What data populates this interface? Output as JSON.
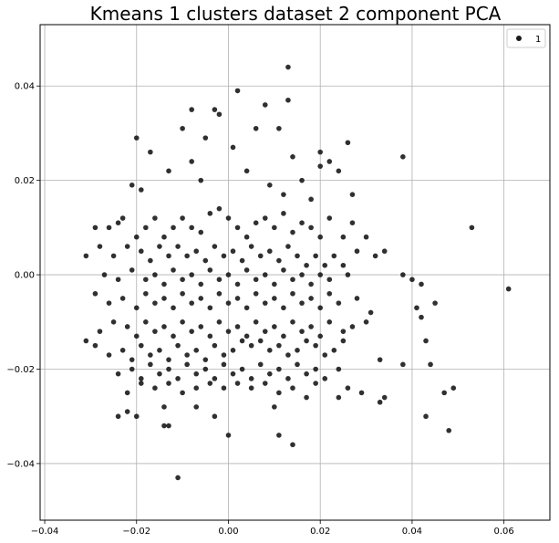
{
  "chart_data": {
    "type": "scatter",
    "title": "Kmeans 1 clusters dataset 2 component PCA",
    "xlabel": "",
    "ylabel": "",
    "xlim": [
      -0.041,
      0.07
    ],
    "ylim": [
      -0.052,
      0.053
    ],
    "xticks": [
      -0.04,
      -0.02,
      0.0,
      0.02,
      0.04,
      0.06
    ],
    "xtick_labels": [
      "−0.04",
      "−0.02",
      "0.00",
      "0.02",
      "0.04",
      "0.06"
    ],
    "yticks": [
      -0.04,
      -0.02,
      0.0,
      0.02,
      0.04
    ],
    "ytick_labels": [
      "−0.04",
      "−0.02",
      "0.00",
      "0.02",
      "0.04"
    ],
    "grid": true,
    "legend": {
      "position": "top-right",
      "entries": [
        "1"
      ]
    },
    "marker_color": "#1a1a1a",
    "series": [
      {
        "name": "1",
        "points": [
          [
            0.013,
            0.044
          ],
          [
            0.002,
            0.039
          ],
          [
            0.013,
            0.037
          ],
          [
            0.008,
            0.036
          ],
          [
            -0.008,
            0.035
          ],
          [
            -0.003,
            0.035
          ],
          [
            0.011,
            0.031
          ],
          [
            0.006,
            0.031
          ],
          [
            -0.01,
            0.031
          ],
          [
            -0.002,
            0.034
          ],
          [
            0.001,
            0.027
          ],
          [
            -0.005,
            0.029
          ],
          [
            0.014,
            0.025
          ],
          [
            0.02,
            0.026
          ],
          [
            0.022,
            0.024
          ],
          [
            0.026,
            0.028
          ],
          [
            0.038,
            0.025
          ],
          [
            -0.02,
            0.029
          ],
          [
            -0.017,
            0.026
          ],
          [
            0.016,
            0.02
          ],
          [
            0.02,
            0.023
          ],
          [
            0.024,
            0.022
          ],
          [
            0.027,
            0.017
          ],
          [
            0.018,
            0.016
          ],
          [
            -0.021,
            0.019
          ],
          [
            -0.019,
            0.018
          ],
          [
            -0.013,
            0.022
          ],
          [
            -0.008,
            0.024
          ],
          [
            -0.006,
            0.02
          ],
          [
            0.004,
            0.022
          ],
          [
            0.009,
            0.019
          ],
          [
            0.012,
            0.017
          ],
          [
            -0.026,
            0.01
          ],
          [
            -0.029,
            0.01
          ],
          [
            -0.024,
            0.011
          ],
          [
            -0.023,
            0.012
          ],
          [
            -0.02,
            0.008
          ],
          [
            -0.018,
            0.01
          ],
          [
            -0.016,
            0.012
          ],
          [
            -0.014,
            0.008
          ],
          [
            -0.012,
            0.01
          ],
          [
            -0.01,
            0.012
          ],
          [
            -0.008,
            0.01
          ],
          [
            -0.006,
            0.009
          ],
          [
            -0.004,
            0.013
          ],
          [
            -0.002,
            0.014
          ],
          [
            0.0,
            0.012
          ],
          [
            0.002,
            0.01
          ],
          [
            0.004,
            0.008
          ],
          [
            0.006,
            0.011
          ],
          [
            0.008,
            0.012
          ],
          [
            0.01,
            0.01
          ],
          [
            0.012,
            0.013
          ],
          [
            0.014,
            0.009
          ],
          [
            0.016,
            0.011
          ],
          [
            0.018,
            0.01
          ],
          [
            0.02,
            0.008
          ],
          [
            0.022,
            0.012
          ],
          [
            0.025,
            0.008
          ],
          [
            0.027,
            0.011
          ],
          [
            0.03,
            0.008
          ],
          [
            0.032,
            0.004
          ],
          [
            0.034,
            0.005
          ],
          [
            0.028,
            0.005
          ],
          [
            -0.031,
            0.004
          ],
          [
            -0.028,
            0.006
          ],
          [
            -0.025,
            0.004
          ],
          [
            -0.022,
            0.006
          ],
          [
            -0.019,
            0.005
          ],
          [
            -0.017,
            0.003
          ],
          [
            -0.015,
            0.006
          ],
          [
            -0.013,
            0.004
          ],
          [
            -0.011,
            0.006
          ],
          [
            -0.009,
            0.004
          ],
          [
            -0.007,
            0.005
          ],
          [
            -0.005,
            0.003
          ],
          [
            -0.003,
            0.006
          ],
          [
            -0.001,
            0.004
          ],
          [
            0.001,
            0.005
          ],
          [
            0.003,
            0.003
          ],
          [
            0.005,
            0.006
          ],
          [
            0.007,
            0.004
          ],
          [
            0.009,
            0.005
          ],
          [
            0.011,
            0.003
          ],
          [
            0.013,
            0.006
          ],
          [
            0.015,
            0.004
          ],
          [
            0.017,
            0.002
          ],
          [
            0.019,
            0.004
          ],
          [
            0.021,
            0.002
          ],
          [
            0.023,
            0.004
          ],
          [
            0.025,
            0.002
          ],
          [
            -0.027,
            0.0
          ],
          [
            -0.024,
            -0.001
          ],
          [
            -0.021,
            0.001
          ],
          [
            -0.018,
            -0.001
          ],
          [
            -0.016,
            0.0
          ],
          [
            -0.014,
            -0.002
          ],
          [
            -0.012,
            0.001
          ],
          [
            -0.01,
            -0.001
          ],
          [
            -0.008,
            0.0
          ],
          [
            -0.006,
            -0.002
          ],
          [
            -0.004,
            0.001
          ],
          [
            -0.002,
            -0.001
          ],
          [
            0.0,
            0.0
          ],
          [
            0.002,
            -0.002
          ],
          [
            0.004,
            0.001
          ],
          [
            0.006,
            -0.001
          ],
          [
            0.008,
            0.0
          ],
          [
            0.01,
            -0.002
          ],
          [
            0.012,
            0.001
          ],
          [
            0.014,
            -0.001
          ],
          [
            0.016,
            0.0
          ],
          [
            0.018,
            -0.002
          ],
          [
            0.02,
            0.0
          ],
          [
            0.022,
            -0.001
          ],
          [
            0.026,
            0.0
          ],
          [
            0.038,
            0.0
          ],
          [
            0.04,
            -0.001
          ],
          [
            0.042,
            -0.002
          ],
          [
            0.045,
            -0.006
          ],
          [
            0.053,
            0.01
          ],
          [
            0.061,
            -0.003
          ],
          [
            -0.029,
            -0.004
          ],
          [
            -0.026,
            -0.006
          ],
          [
            -0.023,
            -0.005
          ],
          [
            -0.02,
            -0.007
          ],
          [
            -0.018,
            -0.004
          ],
          [
            -0.016,
            -0.006
          ],
          [
            -0.014,
            -0.005
          ],
          [
            -0.012,
            -0.007
          ],
          [
            -0.01,
            -0.004
          ],
          [
            -0.008,
            -0.006
          ],
          [
            -0.006,
            -0.005
          ],
          [
            -0.004,
            -0.007
          ],
          [
            -0.002,
            -0.004
          ],
          [
            0.0,
            -0.006
          ],
          [
            0.002,
            -0.005
          ],
          [
            0.004,
            -0.007
          ],
          [
            0.006,
            -0.004
          ],
          [
            0.008,
            -0.006
          ],
          [
            0.01,
            -0.005
          ],
          [
            0.012,
            -0.007
          ],
          [
            0.014,
            -0.004
          ],
          [
            0.016,
            -0.006
          ],
          [
            0.018,
            -0.005
          ],
          [
            0.02,
            -0.007
          ],
          [
            0.022,
            -0.004
          ],
          [
            0.024,
            -0.006
          ],
          [
            0.028,
            -0.005
          ],
          [
            0.031,
            -0.008
          ],
          [
            0.041,
            -0.007
          ],
          [
            -0.031,
            -0.014
          ],
          [
            -0.028,
            -0.012
          ],
          [
            -0.025,
            -0.01
          ],
          [
            -0.022,
            -0.011
          ],
          [
            -0.02,
            -0.013
          ],
          [
            -0.018,
            -0.01
          ],
          [
            -0.016,
            -0.012
          ],
          [
            -0.014,
            -0.011
          ],
          [
            -0.012,
            -0.013
          ],
          [
            -0.01,
            -0.01
          ],
          [
            -0.008,
            -0.012
          ],
          [
            -0.006,
            -0.011
          ],
          [
            -0.004,
            -0.013
          ],
          [
            -0.002,
            -0.01
          ],
          [
            0.0,
            -0.012
          ],
          [
            0.002,
            -0.011
          ],
          [
            0.004,
            -0.013
          ],
          [
            0.006,
            -0.01
          ],
          [
            0.008,
            -0.012
          ],
          [
            0.01,
            -0.011
          ],
          [
            0.012,
            -0.013
          ],
          [
            0.014,
            -0.01
          ],
          [
            0.016,
            -0.012
          ],
          [
            0.018,
            -0.011
          ],
          [
            0.02,
            -0.013
          ],
          [
            0.022,
            -0.01
          ],
          [
            0.025,
            -0.012
          ],
          [
            0.027,
            -0.011
          ],
          [
            0.03,
            -0.01
          ],
          [
            0.042,
            -0.009
          ],
          [
            -0.029,
            -0.015
          ],
          [
            -0.026,
            -0.017
          ],
          [
            -0.023,
            -0.016
          ],
          [
            -0.021,
            -0.018
          ],
          [
            -0.019,
            -0.015
          ],
          [
            -0.017,
            -0.017
          ],
          [
            -0.015,
            -0.016
          ],
          [
            -0.013,
            -0.018
          ],
          [
            -0.011,
            -0.015
          ],
          [
            -0.009,
            -0.017
          ],
          [
            -0.007,
            -0.016
          ],
          [
            -0.005,
            -0.018
          ],
          [
            -0.003,
            -0.015
          ],
          [
            -0.001,
            -0.017
          ],
          [
            0.001,
            -0.016
          ],
          [
            0.003,
            -0.014
          ],
          [
            0.005,
            -0.015
          ],
          [
            0.007,
            -0.014
          ],
          [
            0.009,
            -0.016
          ],
          [
            0.011,
            -0.015
          ],
          [
            0.013,
            -0.017
          ],
          [
            0.015,
            -0.016
          ],
          [
            0.017,
            -0.014
          ],
          [
            0.019,
            -0.015
          ],
          [
            0.021,
            -0.017
          ],
          [
            0.023,
            -0.016
          ],
          [
            0.025,
            -0.014
          ],
          [
            0.033,
            -0.018
          ],
          [
            0.043,
            -0.014
          ],
          [
            -0.024,
            -0.021
          ],
          [
            -0.021,
            -0.02
          ],
          [
            -0.019,
            -0.022
          ],
          [
            -0.017,
            -0.019
          ],
          [
            -0.015,
            -0.021
          ],
          [
            -0.013,
            -0.02
          ],
          [
            -0.011,
            -0.022
          ],
          [
            -0.009,
            -0.019
          ],
          [
            -0.007,
            -0.021
          ],
          [
            -0.005,
            -0.02
          ],
          [
            -0.003,
            -0.022
          ],
          [
            -0.001,
            -0.019
          ],
          [
            0.001,
            -0.021
          ],
          [
            0.003,
            -0.02
          ],
          [
            0.005,
            -0.022
          ],
          [
            0.007,
            -0.019
          ],
          [
            0.009,
            -0.021
          ],
          [
            0.011,
            -0.02
          ],
          [
            0.013,
            -0.022
          ],
          [
            0.015,
            -0.019
          ],
          [
            0.017,
            -0.021
          ],
          [
            0.019,
            -0.02
          ],
          [
            0.021,
            -0.022
          ],
          [
            0.024,
            -0.02
          ],
          [
            0.038,
            -0.019
          ],
          [
            0.044,
            -0.019
          ],
          [
            -0.022,
            -0.025
          ],
          [
            -0.019,
            -0.023
          ],
          [
            -0.016,
            -0.024
          ],
          [
            -0.013,
            -0.023
          ],
          [
            -0.01,
            -0.025
          ],
          [
            -0.007,
            -0.024
          ],
          [
            -0.004,
            -0.023
          ],
          [
            -0.001,
            -0.024
          ],
          [
            0.002,
            -0.023
          ],
          [
            0.005,
            -0.024
          ],
          [
            0.008,
            -0.023
          ],
          [
            0.011,
            -0.025
          ],
          [
            0.014,
            -0.024
          ],
          [
            0.019,
            -0.023
          ],
          [
            0.026,
            -0.024
          ],
          [
            0.029,
            -0.025
          ],
          [
            0.024,
            -0.026
          ],
          [
            0.047,
            -0.025
          ],
          [
            0.049,
            -0.024
          ],
          [
            0.034,
            -0.026
          ],
          [
            0.033,
            -0.027
          ],
          [
            -0.024,
            -0.03
          ],
          [
            -0.022,
            -0.029
          ],
          [
            -0.02,
            -0.03
          ],
          [
            -0.014,
            -0.028
          ],
          [
            -0.007,
            -0.028
          ],
          [
            -0.003,
            -0.03
          ],
          [
            0.01,
            -0.028
          ],
          [
            0.017,
            -0.026
          ],
          [
            0.043,
            -0.03
          ],
          [
            0.048,
            -0.033
          ],
          [
            -0.014,
            -0.032
          ],
          [
            -0.013,
            -0.032
          ],
          [
            0.0,
            -0.034
          ],
          [
            0.011,
            -0.034
          ],
          [
            0.014,
            -0.036
          ],
          [
            -0.011,
            -0.043
          ]
        ]
      }
    ]
  }
}
